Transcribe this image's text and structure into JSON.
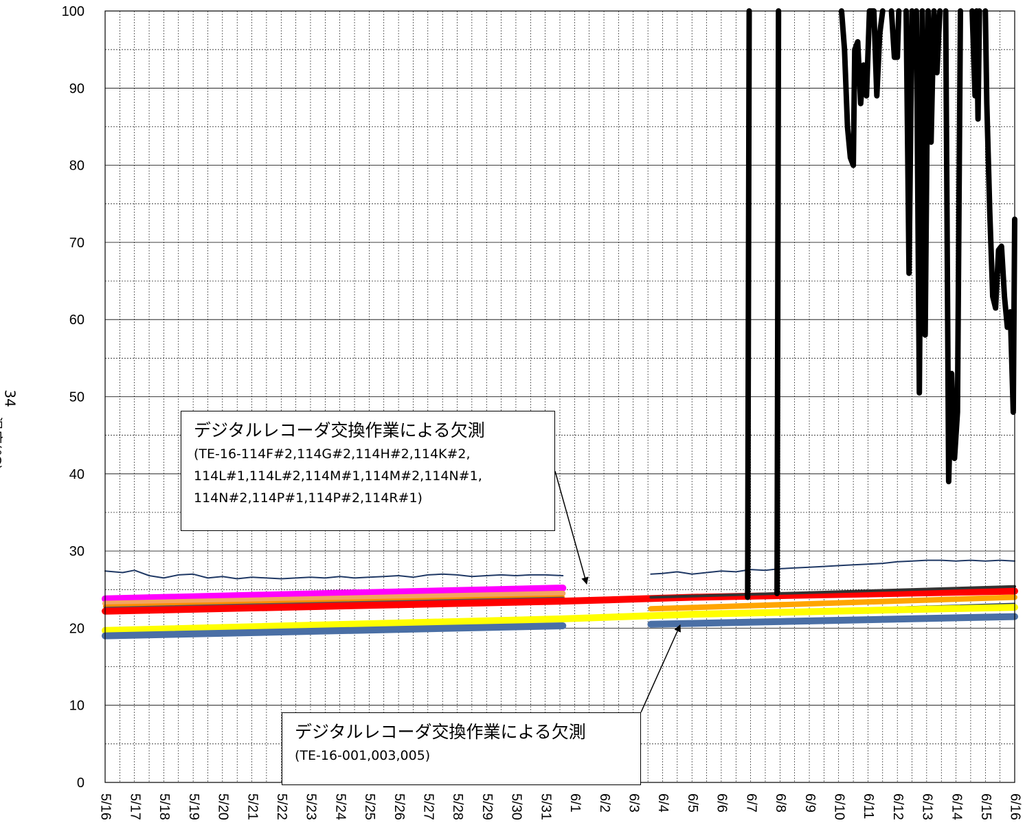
{
  "page_number": "34",
  "chart_data": {
    "type": "line",
    "ylabel": "温度(℃)",
    "ylim": [
      0,
      100
    ],
    "yticks": [
      0,
      10,
      20,
      30,
      40,
      50,
      60,
      70,
      80,
      90,
      100
    ],
    "x_categories": [
      "5/16",
      "5/17",
      "5/18",
      "5/19",
      "5/20",
      "5/21",
      "5/22",
      "5/23",
      "5/24",
      "5/25",
      "5/26",
      "5/27",
      "5/28",
      "5/29",
      "5/30",
      "5/31",
      "6/1",
      "6/2",
      "6/3",
      "6/4",
      "6/5",
      "6/6",
      "6/7",
      "6/8",
      "6/9",
      "6/10",
      "6/11",
      "6/12",
      "6/13",
      "6/14",
      "6/15",
      "6/16"
    ],
    "grid": true,
    "legend": "none",
    "series": [
      {
        "color": "#1f3864",
        "width": 2,
        "points": [
          [
            0,
            27.4
          ],
          [
            0.6,
            27.2
          ],
          [
            1,
            27.5
          ],
          [
            1.5,
            26.8
          ],
          [
            2,
            26.5
          ],
          [
            2.5,
            26.9
          ],
          [
            3,
            27.0
          ],
          [
            3.5,
            26.5
          ],
          [
            4,
            26.7
          ],
          [
            4.5,
            26.4
          ],
          [
            5,
            26.6
          ],
          [
            5.5,
            26.5
          ],
          [
            6,
            26.4
          ],
          [
            6.5,
            26.5
          ],
          [
            7,
            26.6
          ],
          [
            7.5,
            26.5
          ],
          [
            8,
            26.7
          ],
          [
            8.5,
            26.5
          ],
          [
            9,
            26.6
          ],
          [
            9.5,
            26.7
          ],
          [
            10,
            26.8
          ],
          [
            10.5,
            26.6
          ],
          [
            11,
            26.9
          ],
          [
            11.5,
            27.0
          ],
          [
            12,
            26.9
          ],
          [
            12.5,
            26.7
          ],
          [
            13,
            26.8
          ],
          [
            13.5,
            26.9
          ],
          [
            14,
            26.8
          ],
          [
            14.5,
            26.9
          ],
          [
            15,
            26.9
          ],
          [
            15.6,
            26.8
          ],
          null,
          [
            18.6,
            27.0
          ],
          [
            19,
            27.1
          ],
          [
            19.5,
            27.3
          ],
          [
            20,
            27.0
          ],
          [
            20.5,
            27.2
          ],
          [
            21,
            27.4
          ],
          [
            21.5,
            27.3
          ],
          [
            22,
            27.6
          ],
          [
            22.5,
            27.5
          ],
          [
            23,
            27.7
          ],
          [
            23.5,
            27.8
          ],
          [
            24,
            27.9
          ],
          [
            24.5,
            28.0
          ],
          [
            25,
            28.1
          ],
          [
            25.5,
            28.2
          ],
          [
            26,
            28.3
          ],
          [
            26.5,
            28.4
          ],
          [
            27,
            28.6
          ],
          [
            27.5,
            28.7
          ],
          [
            28,
            28.8
          ],
          [
            28.5,
            28.8
          ],
          [
            29,
            28.7
          ],
          [
            29.5,
            28.8
          ],
          [
            30,
            28.7
          ],
          [
            30.5,
            28.8
          ],
          [
            31,
            28.7
          ]
        ]
      },
      {
        "color": "#ff00ff",
        "width": 10,
        "points": [
          [
            0,
            23.8
          ],
          [
            15.6,
            25.2
          ]
        ]
      },
      {
        "color": "#f4a460",
        "width": 8,
        "points": [
          [
            0,
            23.2
          ],
          [
            15.6,
            24.5
          ]
        ]
      },
      {
        "color": "#ff8c00",
        "width": 6,
        "points": [
          [
            0,
            22.8
          ],
          [
            15.6,
            24.0
          ]
        ]
      },
      {
        "color": "#555555",
        "width": 4,
        "points": [
          [
            0,
            22.6
          ],
          [
            15.6,
            23.9
          ]
        ]
      },
      {
        "color": "#ff0000",
        "width": 10,
        "points": [
          [
            0,
            22.2
          ],
          [
            15.6,
            23.5
          ],
          [
            17.5,
            23.7
          ],
          [
            20,
            24.0
          ],
          [
            31,
            24.8
          ]
        ]
      },
      {
        "color": "#333333",
        "width": 4,
        "points": [
          [
            18.6,
            24.0
          ],
          [
            31,
            25.4
          ]
        ]
      },
      {
        "color": "#ffa500",
        "width": 8,
        "points": [
          [
            18.6,
            22.5
          ],
          [
            31,
            24.0
          ]
        ]
      },
      {
        "color": "#1f3864",
        "width": 2,
        "points": [
          [
            0,
            20.0
          ],
          [
            10,
            20.8
          ],
          [
            15.6,
            21.2
          ],
          [
            20,
            21.9
          ],
          [
            31,
            23.2
          ]
        ]
      },
      {
        "color": "#ffff00",
        "width": 10,
        "points": [
          [
            0,
            19.7
          ],
          [
            15.6,
            21.2
          ],
          [
            20,
            21.8
          ],
          [
            31,
            22.7
          ]
        ]
      },
      {
        "color": "#4a6fa5",
        "width": 10,
        "points": [
          [
            0,
            19.0
          ],
          [
            15.6,
            20.3
          ],
          null,
          [
            18.6,
            20.5
          ],
          [
            31,
            21.5
          ]
        ]
      },
      {
        "color": "#000000",
        "width": 8,
        "points": [
          [
            21.9,
            24.0
          ],
          [
            21.95,
            100
          ],
          null,
          [
            22.9,
            24.5
          ],
          [
            22.95,
            100
          ],
          null,
          [
            25.1,
            100
          ],
          [
            25.2,
            95
          ],
          [
            25.3,
            85
          ],
          [
            25.4,
            81
          ],
          [
            25.5,
            80
          ],
          [
            25.55,
            95
          ],
          [
            25.65,
            96
          ],
          [
            25.75,
            88
          ],
          [
            25.85,
            93
          ],
          [
            25.95,
            89
          ],
          [
            26.05,
            100
          ],
          [
            26.2,
            100
          ],
          [
            26.3,
            89
          ],
          [
            26.4,
            97
          ],
          [
            26.5,
            100
          ],
          null,
          [
            26.8,
            100
          ],
          [
            26.9,
            94
          ],
          [
            27.0,
            94
          ],
          [
            27.05,
            100
          ],
          null,
          [
            27.3,
            100
          ],
          [
            27.4,
            66
          ],
          [
            27.5,
            100
          ],
          null,
          [
            27.65,
            100
          ],
          [
            27.75,
            50.5
          ],
          [
            27.85,
            100
          ],
          [
            27.95,
            58
          ],
          [
            28.05,
            100
          ],
          [
            28.15,
            83
          ],
          [
            28.25,
            100
          ],
          [
            28.35,
            92
          ],
          [
            28.45,
            100
          ],
          null,
          [
            28.65,
            100
          ],
          [
            28.75,
            39
          ],
          [
            28.85,
            53
          ],
          [
            28.95,
            42
          ],
          [
            29.05,
            48
          ],
          [
            29.15,
            100
          ],
          null,
          [
            29.55,
            100
          ],
          [
            29.65,
            89
          ],
          [
            29.7,
            100
          ],
          [
            29.75,
            86
          ],
          [
            29.8,
            100
          ],
          null,
          [
            30.0,
            100
          ],
          [
            30.05,
            88
          ],
          [
            30.15,
            74
          ],
          [
            30.25,
            63
          ],
          [
            30.35,
            61.5
          ],
          [
            30.45,
            69
          ],
          [
            30.55,
            69.5
          ],
          [
            30.65,
            63
          ],
          [
            30.75,
            59
          ],
          [
            30.85,
            61
          ],
          [
            30.95,
            48
          ],
          [
            31.0,
            73
          ]
        ]
      }
    ],
    "annotations": [
      {
        "title": "デジタルレコーダ交換作業による欠測",
        "detail": "(TE-16-114F#2,114G#2,114H#2,114K#2,\n114L#1,114L#2,114M#1,114M#2,114N#1,\n114N#2,114P#1,114P#2,114R#1)"
      },
      {
        "title": "デジタルレコーダ交換作業による欠測",
        "detail": "(TE-16-001,003,005)"
      }
    ]
  }
}
